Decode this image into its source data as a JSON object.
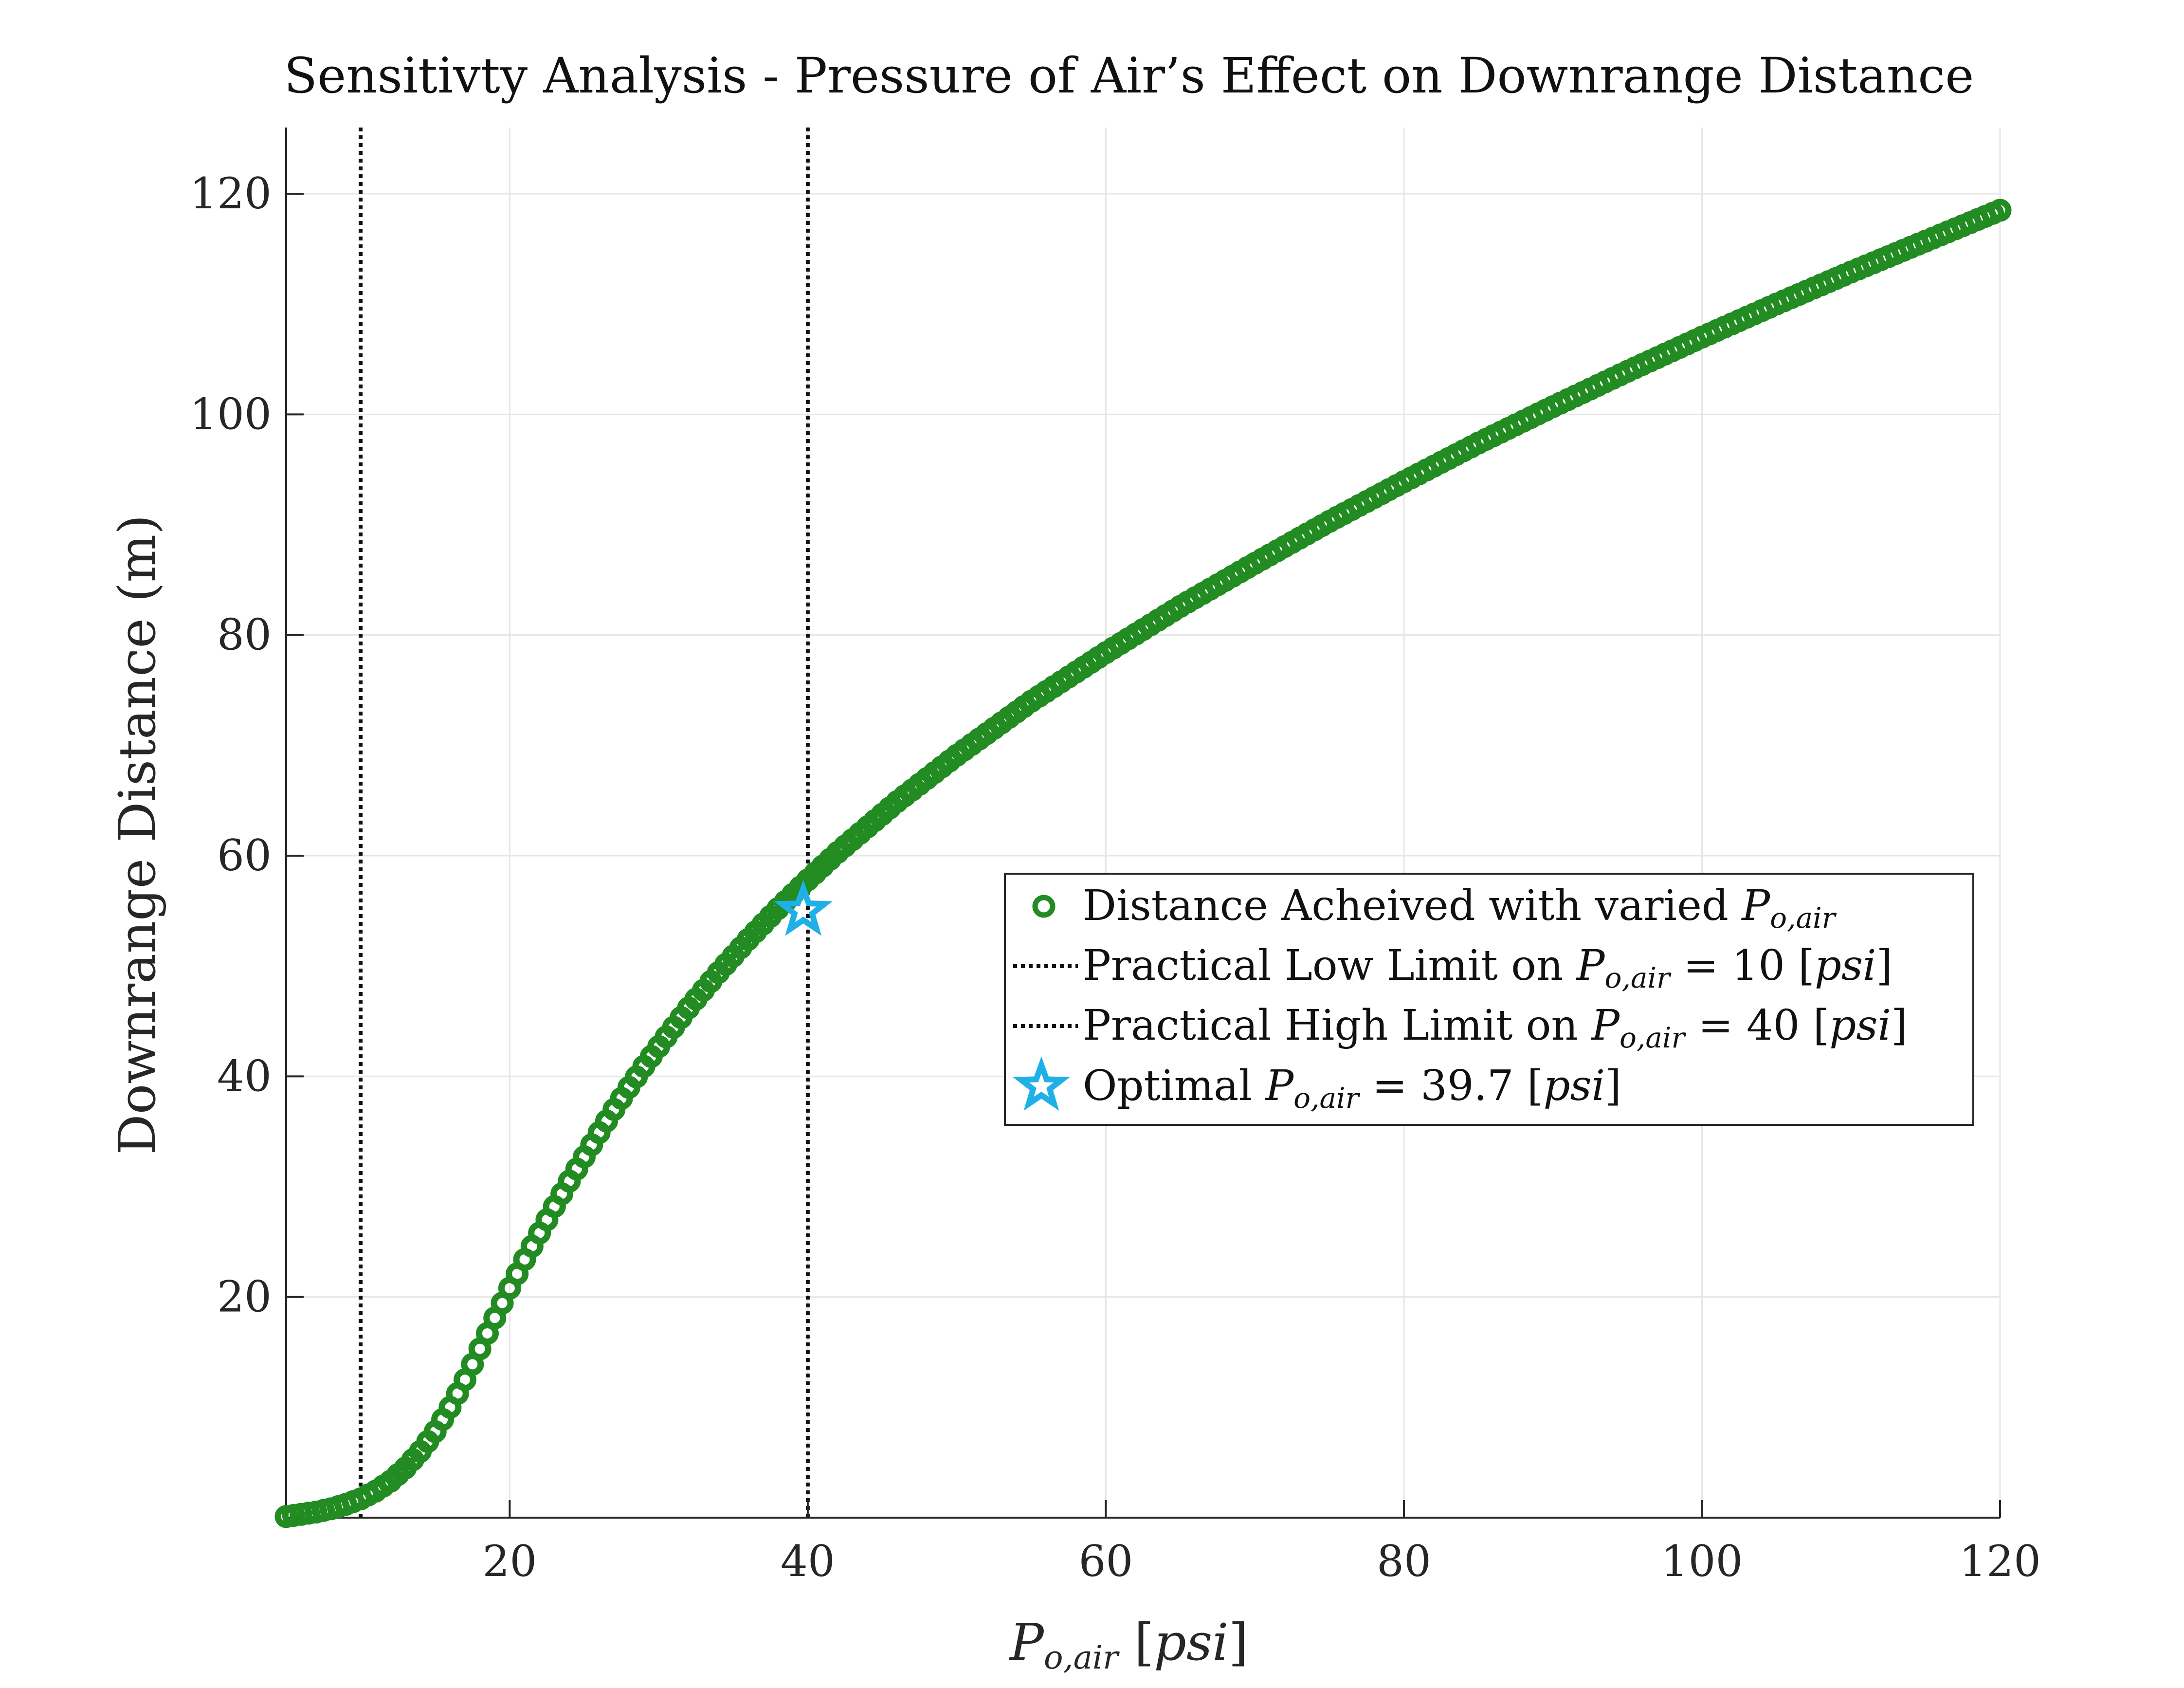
{
  "chart_data": {
    "type": "scatter",
    "title": "Sensitivty Analysis - Pressure of Air’s Effect on Downrange Distance",
    "xlabel": "P_{o,air} [psi]",
    "ylabel": "Downrange Distance (m)",
    "xlim": [
      5,
      120
    ],
    "ylim": [
      0,
      126
    ],
    "xticks": [
      20,
      40,
      60,
      80,
      100,
      120
    ],
    "yticks": [
      20,
      40,
      60,
      80,
      100,
      120
    ],
    "grid": true,
    "legend_position": "middle-right",
    "colors": {
      "series": "#228b22",
      "optimal": "#1fb0e8",
      "limit_lines": "#111111"
    },
    "series": [
      {
        "name": "Distance Acheived with varied P_{o,air}",
        "marker": "circle",
        "x": [
          5,
          6,
          7,
          8,
          9,
          10,
          11,
          12,
          13,
          14,
          15,
          16,
          17,
          18,
          19,
          20,
          21,
          22,
          23,
          24,
          25,
          26,
          27,
          28,
          29,
          30,
          32,
          34,
          36,
          38,
          40,
          42,
          44,
          46,
          48,
          50,
          55,
          60,
          65,
          70,
          75,
          80,
          85,
          90,
          95,
          100,
          105,
          110,
          115,
          120
        ],
        "y": [
          0.1,
          0.3,
          0.5,
          0.8,
          1.2,
          1.7,
          2.4,
          3.3,
          4.5,
          6.0,
          7.8,
          10.0,
          12.5,
          15.3,
          18.1,
          20.8,
          23.4,
          25.8,
          28.2,
          30.5,
          32.7,
          34.9,
          37.0,
          39.0,
          40.9,
          42.7,
          46.2,
          49.4,
          52.4,
          55.2,
          57.8,
          60.3,
          62.6,
          64.9,
          67.0,
          69.1,
          74.0,
          78.4,
          82.6,
          86.5,
          90.3,
          93.9,
          97.4,
          100.7,
          103.9,
          107.0,
          110.0,
          112.9,
          115.7,
          118.5
        ]
      },
      {
        "name": "Practical Low Limit on P_{o,air} = 10 [psi]",
        "type": "vline",
        "x": 10
      },
      {
        "name": "Practical High Limit on P_{o,air} = 40 [psi]",
        "type": "vline",
        "x": 40
      },
      {
        "name": "Optimal P_{o,air} = 39.7 [psi]",
        "marker": "star",
        "x": [
          39.7
        ],
        "y": [
          55
        ]
      }
    ]
  },
  "legend": {
    "entry1_text": "Distance Acheived with varied ",
    "entry2_text": "Practical Low Limit on ",
    "entry2_suffix": " = 10 [",
    "entry3_text": "Practical High Limit on ",
    "entry3_suffix": " = 40 [",
    "entry4_text": "Optimal ",
    "entry4_suffix": " = 39.7 [",
    "var_main": "P",
    "var_sub": "o,air",
    "unit": "psi",
    "close": "]"
  },
  "axes": {
    "xlabel_var": "P",
    "xlabel_sub": "o,air",
    "xlabel_unit_open": " [",
    "xlabel_unit": "psi",
    "xlabel_unit_close": "]",
    "ylabel": "Downrange Distance (m)"
  }
}
